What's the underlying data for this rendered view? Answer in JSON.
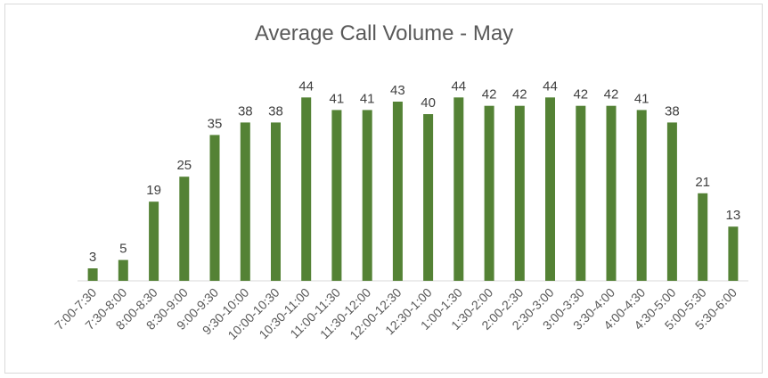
{
  "chart_data": {
    "type": "bar",
    "title": "Average Call Volume - May",
    "xlabel": "",
    "ylabel": "",
    "ylim": [
      0,
      46
    ],
    "grid": false,
    "legend": "none",
    "bar_color": "#548235",
    "categories": [
      "7:00-7:30",
      "7:30-8:00",
      "8:00-8:30",
      "8:30-9:00",
      "9:00-9:30",
      "9:30-10:00",
      "10:00-10:30",
      "10:30-11:00",
      "11:00-11:30",
      "11:30-12:00",
      "12:00-12:30",
      "12:30-1:00",
      "1:00-1:30",
      "1:30-2:00",
      "2:00-2:30",
      "2:30-3:00",
      "3:00-3:30",
      "3:30-4:00",
      "4:00-4:30",
      "4:30-5:00",
      "5:00-5:30",
      "5:30-6:00"
    ],
    "values": [
      3,
      5,
      19,
      25,
      35,
      38,
      38,
      44,
      41,
      41,
      43,
      40,
      44,
      42,
      42,
      44,
      42,
      42,
      41,
      38,
      21,
      13
    ]
  }
}
